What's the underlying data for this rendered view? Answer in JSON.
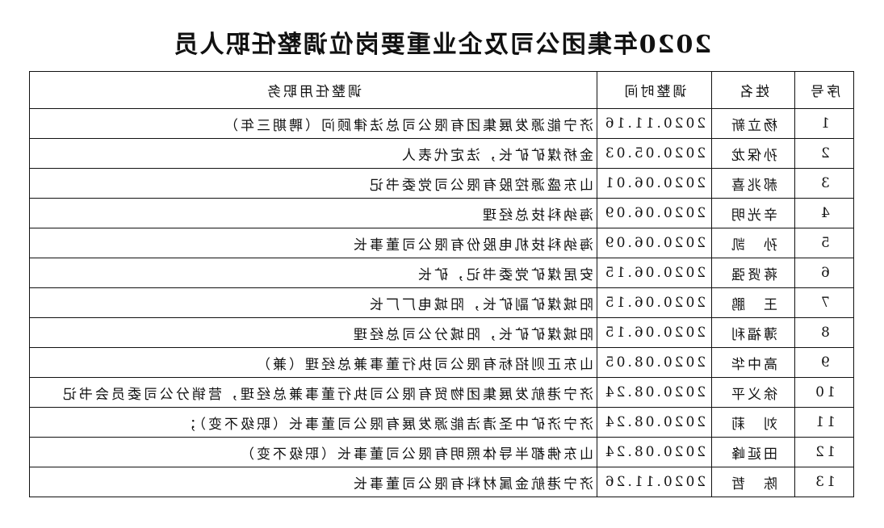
{
  "title": "2020年集团公司及企业重要岗位调整任职人员",
  "headers": {
    "no": "序号",
    "name": "姓名",
    "date": "调整时间",
    "duty": "调整任用职务"
  },
  "rows": [
    {
      "no": "1",
      "name": "杨立新",
      "date": "2020.11.16",
      "duty": "济宁能源发展集团有限公司总法律顾问（聘期三年）"
    },
    {
      "no": "2",
      "name": "孙保龙",
      "date": "2020.05.03",
      "duty": "金桥煤矿矿长，法定代表人"
    },
    {
      "no": "3",
      "name": "郝兆喜",
      "date": "2020.06.01",
      "duty": "山东盛源控股有限公司党委书记"
    },
    {
      "no": "4",
      "name": "辛光明",
      "date": "2020.06.09",
      "duty": "海纳科技总经理"
    },
    {
      "no": "5",
      "name": "孙　凯",
      "date": "2020.06.09",
      "duty": "海纳科技机电股份有限公司董事长"
    },
    {
      "no": "6",
      "name": "蒋贤强",
      "date": "2020.06.15",
      "duty": "安居煤矿党委书记，矿长"
    },
    {
      "no": "7",
      "name": "王　鹏",
      "date": "2020.06.15",
      "duty": "阳城煤矿副矿长，阳城电厂厂长"
    },
    {
      "no": "8",
      "name": "薄福利",
      "date": "2020.06.15",
      "duty": "阳城煤矿矿长，阳城分公司总经理"
    },
    {
      "no": "9",
      "name": "高中华",
      "date": "2020.08.05",
      "duty": "山东正则招标有限公司执行董事兼总经理（兼）"
    },
    {
      "no": "10",
      "name": "徐义平",
      "date": "2020.08.24",
      "duty": "济宁港航发展集团物贸有限公司执行董事兼总经理，营销分公司委员会书记"
    },
    {
      "no": "11",
      "name": "刘　莉",
      "date": "2020.08.24",
      "duty": "济宁济矿中圣清洁能源发展有限公司董事长（职级不变）；"
    },
    {
      "no": "12",
      "name": "田延峰",
      "date": "2020.08.24",
      "duty": "山东佛都半导体照明有限公司董事长（职级不变）"
    },
    {
      "no": "13",
      "name": "陈　哲",
      "date": "2020.11.26",
      "duty": "济宁港航金属材料有限公司董事长"
    }
  ]
}
